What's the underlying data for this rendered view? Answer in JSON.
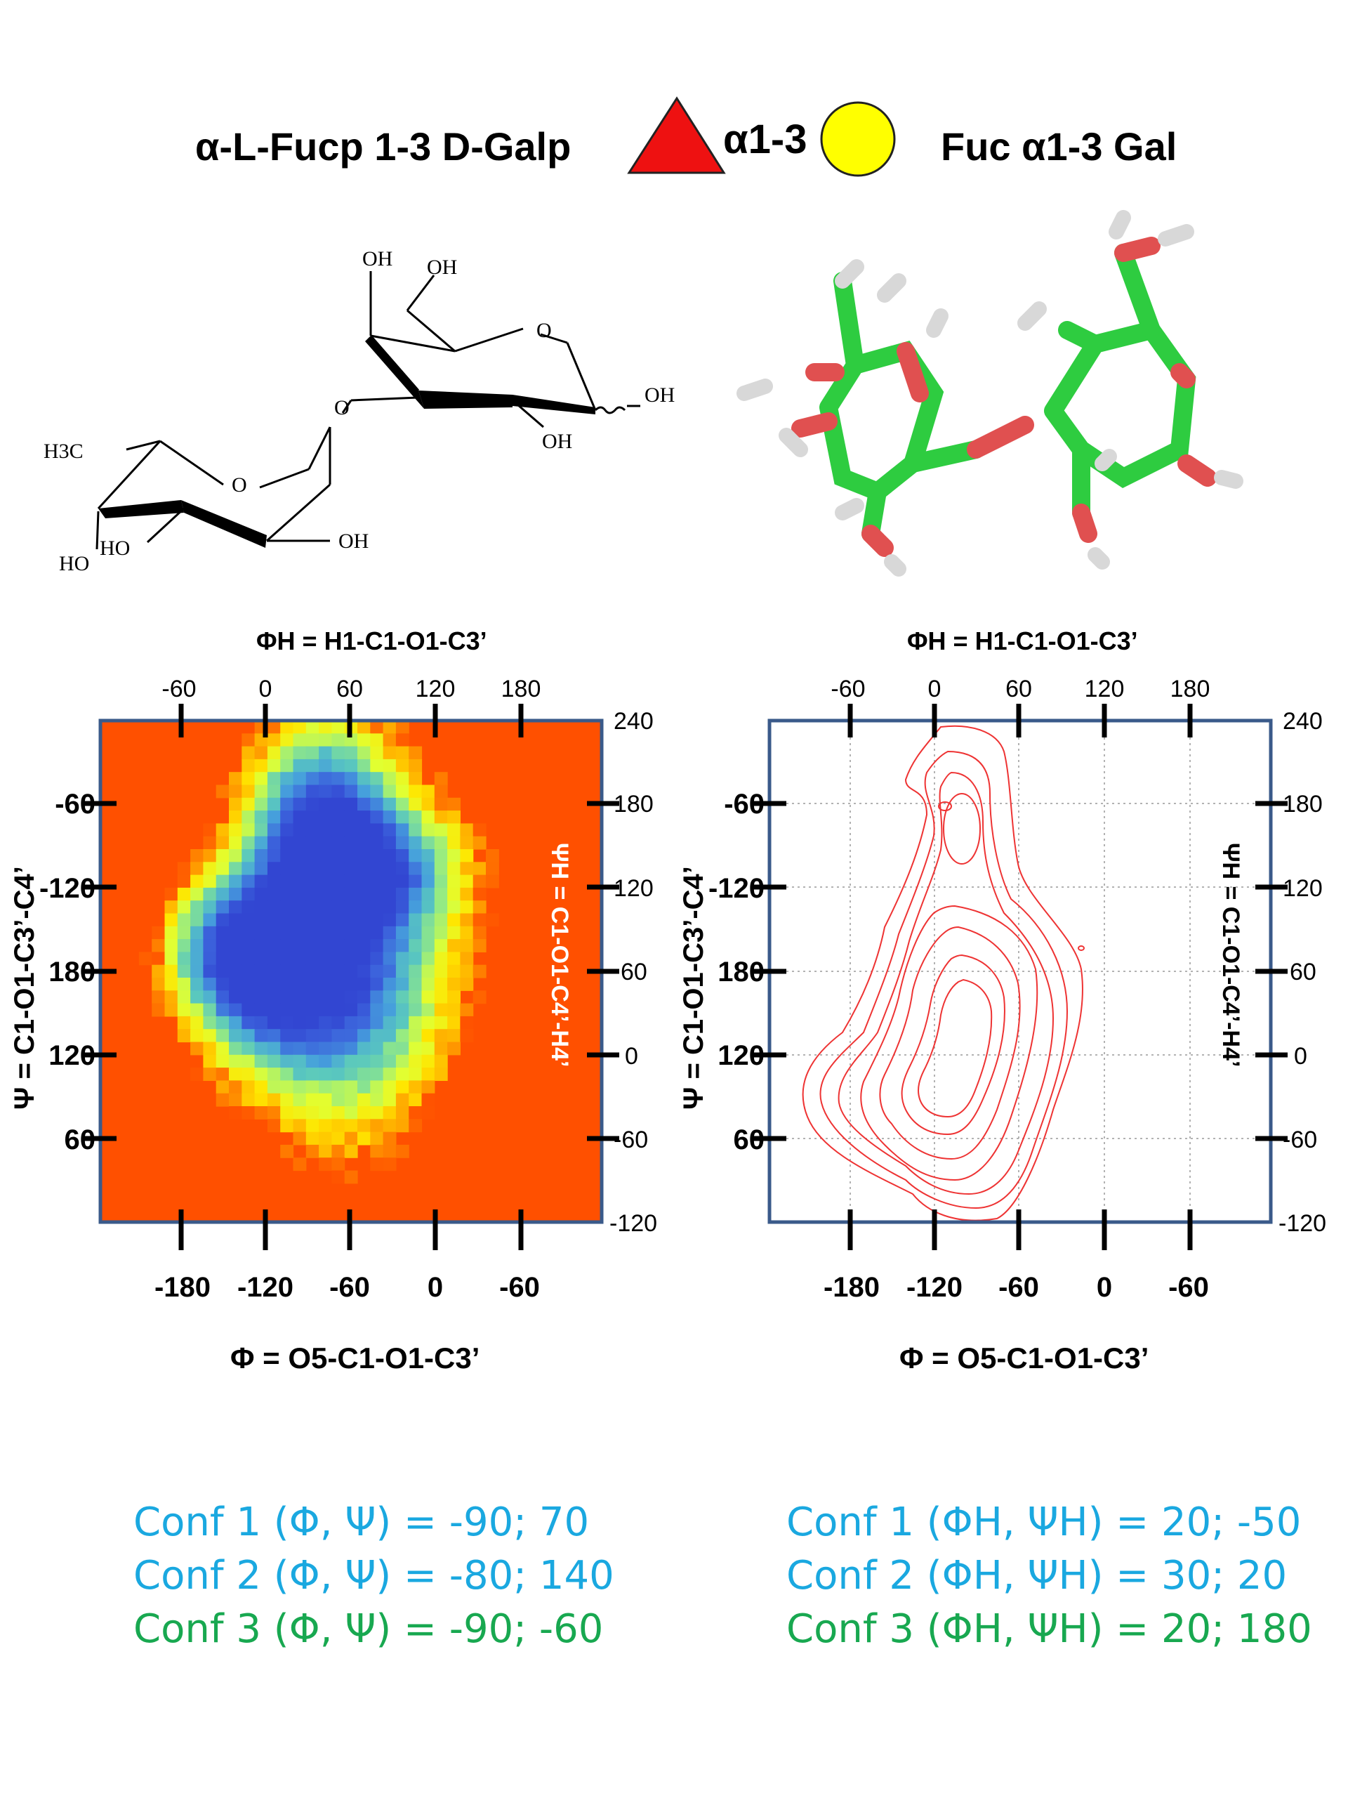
{
  "header": {
    "name_full": "α-L-Fucp 1-3 D-Galp",
    "linkage": "α1-3",
    "name_short": "Fuc α1-3 Gal",
    "colors": {
      "fucose_triangle": "#ee1111",
      "galactose_circle": "#ffff00"
    }
  },
  "structure": {
    "labels": [
      "OH",
      "OH",
      "O",
      "OH",
      "O",
      "OH",
      "H3C",
      "O",
      "HO",
      "HO",
      "OH"
    ]
  },
  "plots": {
    "top_axis_label": "ΦH = H1-C1-O1-C3’",
    "top_ticks": [
      "-60",
      "0",
      "60",
      "120",
      "180"
    ],
    "bottom_ticks": [
      "-180",
      "-120",
      "-60",
      "0",
      "-60"
    ],
    "bottom_axis_label": "Φ = O5-C1-O1-C3’",
    "left_ticks": [
      "-60",
      "-120",
      "180",
      "120",
      "60"
    ],
    "left_axis_label": "Ψ = C1-O1-C3’-C4’",
    "right_ticks": [
      "240",
      "180",
      "120",
      "60",
      "0",
      "-60",
      "-120"
    ],
    "right_axis_label": "ΨH = C1-O1-C4’-H4’",
    "colors": {
      "background": "#ff5000",
      "frame": "#3a5a8a",
      "contour": "#ee3333"
    },
    "left_plot": "heatmap",
    "right_plot": "contour"
  },
  "conformations": {
    "left": [
      {
        "text": "Conf 1 (Φ, Ψ) = -90; 70",
        "color": "#1aa8e0"
      },
      {
        "text": "Conf 2 (Φ, Ψ) = -80; 140",
        "color": "#1aa8e0"
      },
      {
        "text": "Conf 3 (Φ, Ψ) = -90; -60",
        "color": "#18a850"
      }
    ],
    "right": [
      {
        "text": "Conf 1 (ΦH, ΨH) = 20; -50",
        "color": "#1aa8e0"
      },
      {
        "text": "Conf 2 (ΦH, ΨH) = 30; 20",
        "color": "#1aa8e0"
      },
      {
        "text": "Conf 3 (ΦH, ΨH) = 20; 180",
        "color": "#18a850"
      }
    ]
  }
}
